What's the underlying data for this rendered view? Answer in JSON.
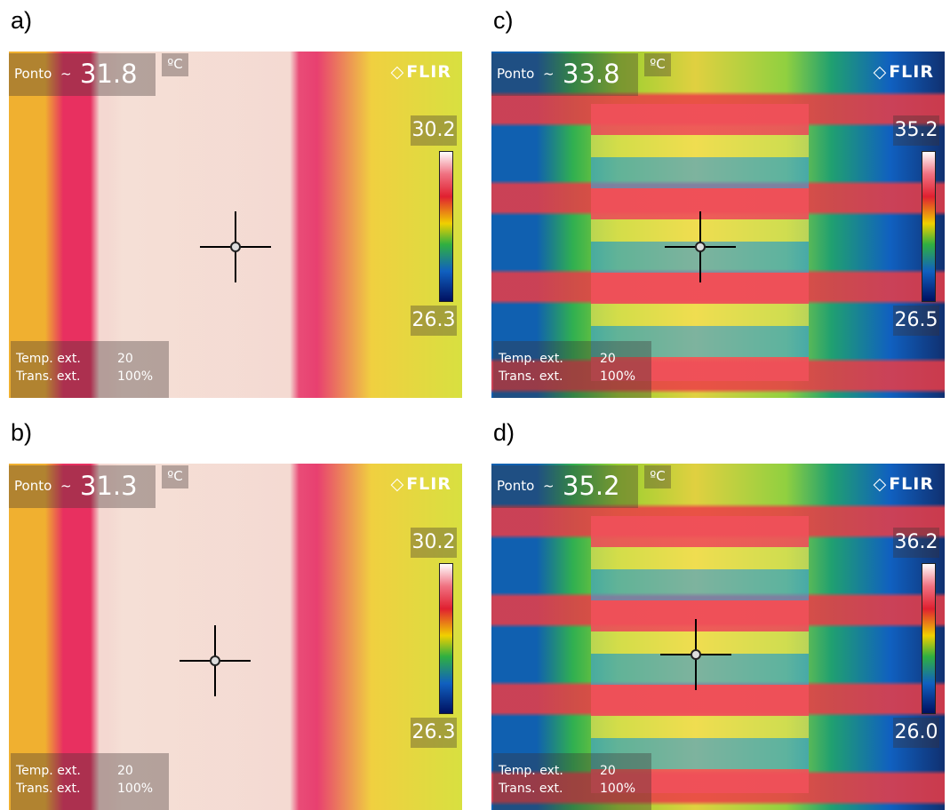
{
  "panels": [
    {
      "label": "a)",
      "spot_label": "Ponto",
      "spot_symbol": "~",
      "spot_value": "31.8",
      "unit": "ºC",
      "brand": "FLIR",
      "scale_max": "30.2",
      "scale_min": "26.3",
      "ext_temp_label": "Temp. ext.",
      "ext_temp_value": "20",
      "trans_label": "Trans. ext.",
      "trans_value": "100%"
    },
    {
      "label": "c)",
      "spot_label": "Ponto",
      "spot_symbol": "~",
      "spot_value": "33.8",
      "unit": "ºC",
      "brand": "FLIR",
      "scale_max": "35.2",
      "scale_min": "26.5",
      "ext_temp_label": "Temp. ext.",
      "ext_temp_value": "20",
      "trans_label": "Trans. ext.",
      "trans_value": "100%"
    },
    {
      "label": "b)",
      "spot_label": "Ponto",
      "spot_symbol": "~",
      "spot_value": "31.3",
      "unit": "ºC",
      "brand": "FLIR",
      "scale_max": "30.2",
      "scale_min": "26.3",
      "ext_temp_label": "Temp. ext.",
      "ext_temp_value": "20",
      "trans_label": "Trans. ext.",
      "trans_value": "100%"
    },
    {
      "label": "d)",
      "spot_label": "Ponto",
      "spot_symbol": "~",
      "spot_value": "35.2",
      "unit": "ºC",
      "brand": "FLIR",
      "scale_max": "36.2",
      "scale_min": "26.0",
      "ext_temp_label": "Temp. ext.",
      "ext_temp_value": "20",
      "trans_label": "Trans. ext.",
      "trans_value": "100%"
    }
  ]
}
